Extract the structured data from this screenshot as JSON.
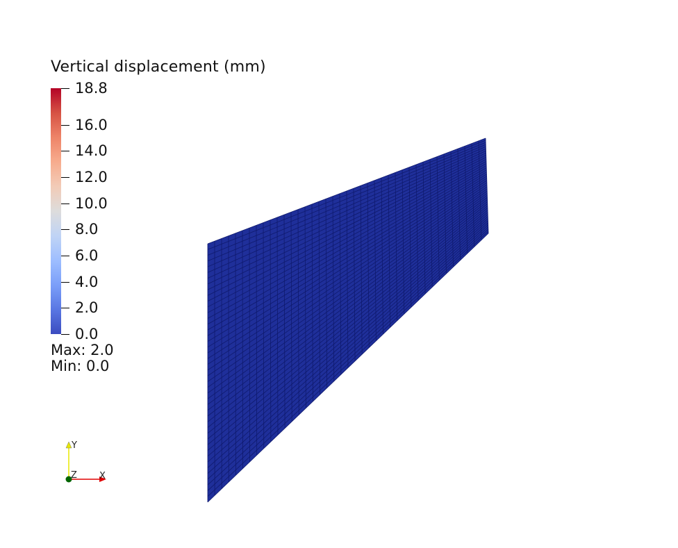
{
  "legend": {
    "title": "Vertical displacement (mm)",
    "range": [
      0.0,
      18.8
    ],
    "colormap": [
      "#3b4cc0",
      "#5977e3",
      "#7b9ff9",
      "#9ebeff",
      "#c0d4f5",
      "#dddcdc",
      "#f2cbb7",
      "#f7ac8e",
      "#ee8468",
      "#d65244",
      "#b40426"
    ],
    "ticks": [
      {
        "value": 18.8,
        "label": "18.8"
      },
      {
        "value": 16.0,
        "label": "16.0"
      },
      {
        "value": 14.0,
        "label": "14.0"
      },
      {
        "value": 12.0,
        "label": "12.0"
      },
      {
        "value": 10.0,
        "label": "10.0"
      },
      {
        "value": 8.0,
        "label": "8.0"
      },
      {
        "value": 6.0,
        "label": "6.0"
      },
      {
        "value": 4.0,
        "label": "4.0"
      },
      {
        "value": 2.0,
        "label": "2.0"
      },
      {
        "value": 0.0,
        "label": "0.0"
      }
    ],
    "max_text": "Max: 2.0",
    "min_text": "Min: 0.0"
  },
  "mesh": {
    "fill_color": "#1f2f9a",
    "grid_color": "#0f1a6e",
    "columns": 40,
    "rows": 45
  },
  "axes": {
    "x_label": "X",
    "y_label": "Y",
    "z_label": "Z",
    "x_color": "#e00000",
    "y_color": "#e8e800",
    "z_color": "#006400"
  }
}
